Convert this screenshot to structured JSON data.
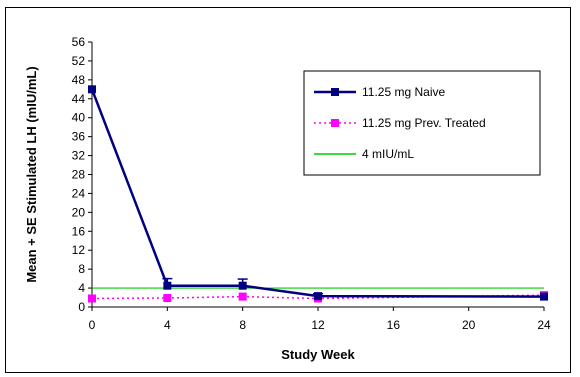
{
  "chart_data": {
    "type": "line",
    "title": "",
    "xlabel": "Study Week",
    "ylabel": "Mean + SE Stimulated LH (mIU/mL)",
    "xlim": [
      0,
      24
    ],
    "ylim": [
      0,
      56
    ],
    "x_ticks": [
      0,
      4,
      8,
      12,
      16,
      20,
      24
    ],
    "y_ticks": [
      0,
      4,
      8,
      12,
      16,
      20,
      24,
      28,
      32,
      36,
      40,
      44,
      48,
      52,
      56
    ],
    "grid": false,
    "legend_position": "top-right",
    "series": [
      {
        "name": "11.25 mg Naive",
        "color": "#000080",
        "line_style": "solid",
        "marker": "square",
        "x": [
          0,
          4,
          8,
          12,
          24
        ],
        "y": [
          46,
          4.5,
          4.5,
          2.3,
          2.2
        ],
        "error_plus": [
          0,
          1.5,
          1.4,
          0.5,
          0
        ]
      },
      {
        "name": "11.25 mg Prev. Treated",
        "color": "#ff00ff",
        "line_style": "dotted",
        "marker": "square",
        "x": [
          0,
          4,
          8,
          12,
          24
        ],
        "y": [
          1.8,
          1.9,
          2.2,
          1.8,
          2.5
        ],
        "error_plus": [
          0,
          0,
          0,
          0,
          0
        ]
      },
      {
        "name": "4 mIU/mL",
        "color": "#00cc00",
        "line_style": "solid",
        "marker": "none",
        "x": [
          0,
          24
        ],
        "y": [
          4,
          4
        ],
        "error_plus": [
          0,
          0
        ]
      }
    ]
  }
}
